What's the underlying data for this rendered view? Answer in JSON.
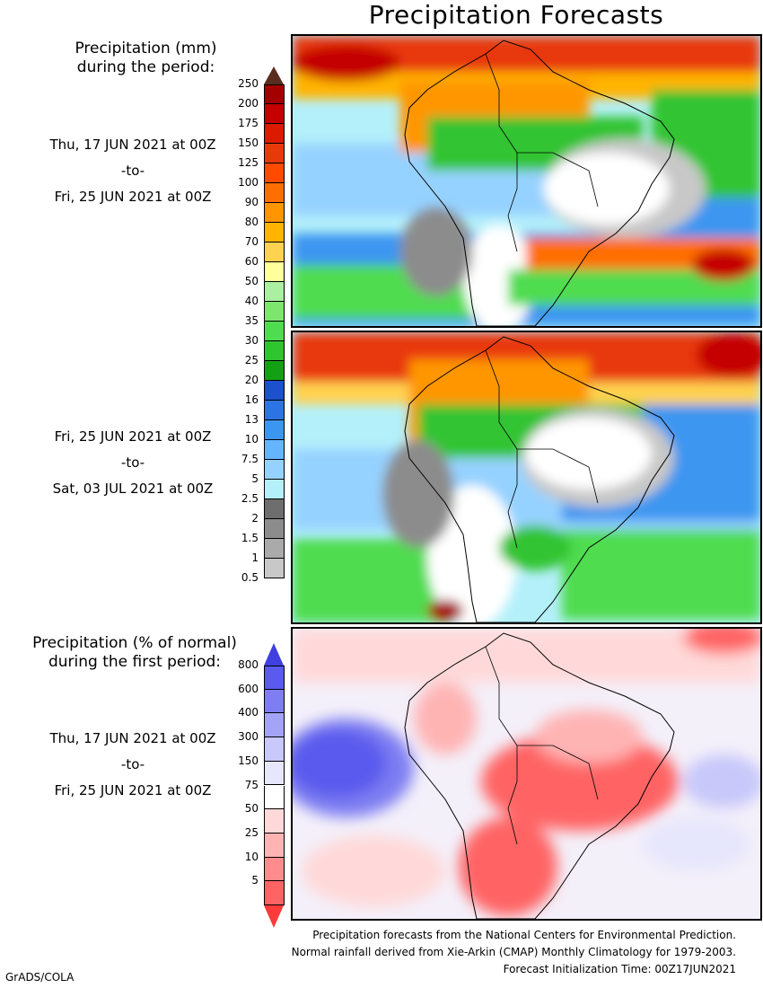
{
  "title": "Precipitation Forecasts",
  "mm_legend": {
    "heading_line1": "Precipitation (mm)",
    "heading_line2": "during the period:",
    "labels": [
      "250",
      "200",
      "175",
      "150",
      "125",
      "100",
      "90",
      "80",
      "70",
      "60",
      "50",
      "40",
      "35",
      "30",
      "25",
      "20",
      "16",
      "13",
      "10",
      "7.5",
      "5",
      "2.5",
      "2",
      "1.5",
      "1",
      "0.5"
    ],
    "colors": [
      "#a50000",
      "#c50000",
      "#dc1a00",
      "#e8390a",
      "#ff4a00",
      "#ff6e00",
      "#ff9600",
      "#ffb400",
      "#ffd250",
      "#ffff9c",
      "#aaf0a0",
      "#7ee66e",
      "#50dc50",
      "#30c430",
      "#14a014",
      "#1c50cd",
      "#2d74e2",
      "#3c96f0",
      "#64b4ff",
      "#96d2ff",
      "#b4f0fa",
      "#6e6e6e",
      "#8c8c8c",
      "#aaaaaa",
      "#c8c8c8"
    ],
    "top_arrow_color": "#5a2d1e",
    "bottom_arrow_color": "#ffffff"
  },
  "pct_legend": {
    "heading_line1": "Precipitation (% of normal)",
    "heading_line2": "during the first period:",
    "labels": [
      "800",
      "600",
      "400",
      "300",
      "150",
      "75",
      "50",
      "25",
      "10",
      "5"
    ],
    "colors": [
      "#5a5aee",
      "#7e7ef2",
      "#a4a4f6",
      "#c8c8fa",
      "#e6e6fc",
      "#ffffff",
      "#ffd9d9",
      "#ffb4b4",
      "#ff8c8c",
      "#ff6464"
    ],
    "top_arrow_color": "#4040e0",
    "bottom_arrow_color": "#ff3a3a"
  },
  "periods": [
    {
      "start": "Thu, 17 JUN 2021 at 00Z",
      "sep": "-to-",
      "end": "Fri, 25 JUN 2021 at 00Z"
    },
    {
      "start": "Fri, 25 JUN 2021 at 00Z",
      "sep": "-to-",
      "end": "Sat, 03 JUL 2021 at 00Z"
    },
    {
      "start": "Thu, 17 JUN 2021 at 00Z",
      "sep": "-to-",
      "end": "Fri, 25 JUN 2021 at 00Z"
    }
  ],
  "footnotes": {
    "line1": "Precipitation forecasts from the National Centers for Environmental Prediction.",
    "line2": "Normal rainfall derived from Xie-Arkin (CMAP) Monthly Climatology for 1979-2003.",
    "line3": "Forecast Initialization Time: 00Z17JUN2021"
  },
  "credit": "GrADS/COLA"
}
